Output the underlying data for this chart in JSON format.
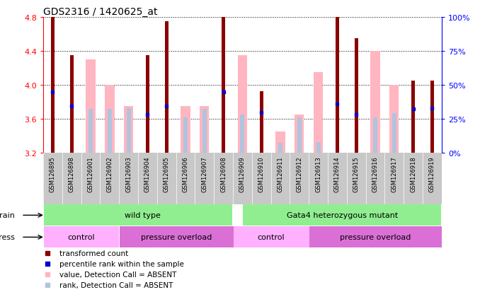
{
  "title": "GDS2316 / 1420625_at",
  "samples": [
    "GSM126895",
    "GSM126898",
    "GSM126901",
    "GSM126902",
    "GSM126903",
    "GSM126904",
    "GSM126905",
    "GSM126906",
    "GSM126907",
    "GSM126908",
    "GSM126909",
    "GSM126910",
    "GSM126911",
    "GSM126912",
    "GSM126913",
    "GSM126914",
    "GSM126915",
    "GSM126916",
    "GSM126917",
    "GSM126918",
    "GSM126919"
  ],
  "red_values": [
    4.8,
    4.35,
    null,
    null,
    null,
    4.35,
    4.75,
    null,
    null,
    4.8,
    null,
    3.93,
    null,
    null,
    null,
    4.8,
    4.55,
    null,
    null,
    4.05,
    4.05
  ],
  "pink_values": [
    null,
    null,
    4.3,
    4.0,
    3.75,
    null,
    null,
    3.75,
    3.75,
    null,
    4.35,
    null,
    3.45,
    3.65,
    4.15,
    null,
    null,
    4.4,
    4.0,
    null,
    null
  ],
  "blue_values": [
    3.92,
    3.75,
    null,
    null,
    null,
    3.65,
    3.75,
    null,
    null,
    3.92,
    null,
    3.68,
    null,
    null,
    null,
    3.78,
    3.65,
    null,
    null,
    3.72,
    3.73
  ],
  "lightblue_values": [
    null,
    null,
    3.72,
    3.72,
    3.73,
    null,
    null,
    3.62,
    3.72,
    null,
    3.65,
    null,
    3.32,
    3.62,
    3.33,
    null,
    null,
    3.62,
    3.67,
    null,
    null
  ],
  "ymin": 3.2,
  "ymax": 4.8,
  "yticks_left": [
    3.2,
    3.6,
    4.0,
    4.4,
    4.8
  ],
  "yticks_right_pct": [
    0,
    25,
    50,
    75,
    100
  ],
  "red_color": "#8B0000",
  "pink_color": "#ffb6c1",
  "blue_color": "#0000CD",
  "lightblue_color": "#b0c4de",
  "gray_bg": "#c8c8c8",
  "green_color": "#90EE90",
  "purple_color": "#DA70D6",
  "pink_ctrl_color": "#FFB0FF"
}
